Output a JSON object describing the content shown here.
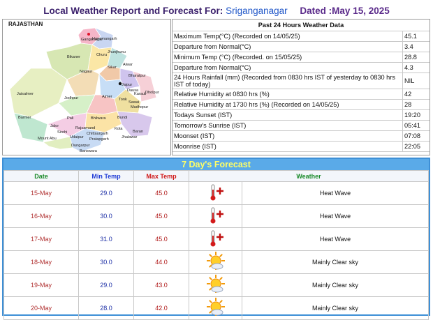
{
  "header": {
    "title": "Local Weather Report and Forecast For:",
    "station": "Sriganganagar",
    "dated": "Dated :May 15, 2025"
  },
  "map": {
    "title": "RAJASTHAN",
    "cities": [
      "Ganganagar",
      "Hanumangarh",
      "Bikaner",
      "Churu",
      "Jhunjhunu",
      "Sikar",
      "Alwar",
      "Bharatpur",
      "Jaisalmer",
      "Nagaur",
      "Jaipur",
      "Dausa",
      "Karauli",
      "Dholpur",
      "Jodhpur",
      "Ajmer",
      "Tonk",
      "Sawai",
      "Madhopur",
      "Barmer",
      "Pali",
      "Bhilwara",
      "Bundi",
      "Kota",
      "Baran",
      "Jalor",
      "Sirohi",
      "Rajsamand",
      "Chittaurgarh",
      "Jhalawar",
      "Mount Abu",
      "Udaipur",
      "Pratapgarh",
      "Dungarpur",
      "Banswara"
    ]
  },
  "past": {
    "title": "Past 24 Hours Weather Data",
    "rows": [
      [
        "Maximum Temp(°C) (Recorded on 14/05/25)",
        45.1
      ],
      [
        "Departure from Normal(°C)",
        3.4
      ],
      [
        "Minimum Temp (°C) (Recorded. on 15/05/25)",
        28.8
      ],
      [
        "Departure from Normal(°C)",
        4.3
      ],
      [
        "24 Hours Rainfall (mm) (Recorded from 0830 hrs IST of yesterday to 0830 hrs IST of today)",
        "NIL"
      ],
      [
        "Relative Humidity at 0830 hrs (%)",
        42
      ],
      [
        "Relative Humidity at 1730 hrs (%) (Recorded on 14/05/25)",
        28
      ],
      [
        "Todays Sunset (IST)",
        "19:20"
      ],
      [
        "Tomorrow's Sunrise (IST)",
        "05:41"
      ],
      [
        "Moonset (IST)",
        "07:08"
      ],
      [
        "Moonrise (IST)",
        "22:05"
      ]
    ]
  },
  "forecast": {
    "title": "7 Day's Forecast",
    "headers": [
      "Date",
      "Min Temp",
      "Max Temp",
      "Weather"
    ],
    "rows": [
      [
        "15-May",
        "29.0",
        "45.0",
        "Heat Wave"
      ],
      [
        "16-May",
        "30.0",
        "45.0",
        "Heat Wave"
      ],
      [
        "17-May",
        "31.0",
        "45.0",
        "Heat Wave"
      ],
      [
        "18-May",
        "30.0",
        "44.0",
        "Mainly Clear sky"
      ],
      [
        "19-May",
        "29.0",
        "43.0",
        "Mainly Clear sky"
      ],
      [
        "20-May",
        "28.0",
        "42.0",
        "Mainly Clear sky"
      ]
    ]
  }
}
